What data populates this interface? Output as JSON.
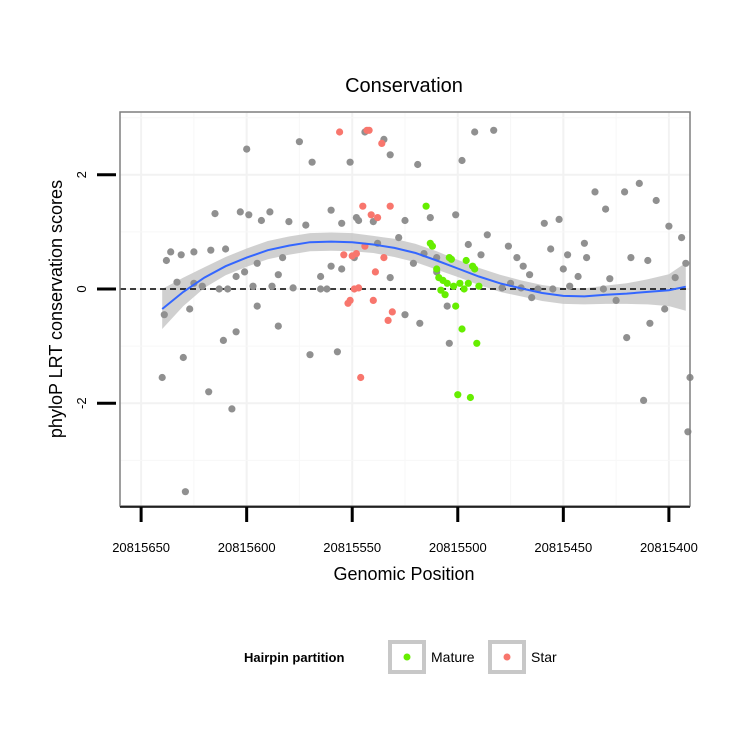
{
  "chart_data": {
    "type": "scatter",
    "title": "Conservation",
    "xlabel": "Genomic Position",
    "ylabel": "phyloP LRT conservation scores",
    "x_reversed": true,
    "xlim": [
      20815660,
      20815390
    ],
    "ylim": [
      -3.8,
      3.1
    ],
    "x_ticks": [
      20815650,
      20815600,
      20815550,
      20815500,
      20815450,
      20815400
    ],
    "x_tick_labels": [
      "20815650",
      "20815600",
      "20815550",
      "20815500",
      "20815450",
      "20815400"
    ],
    "y_ticks": [
      -2,
      0,
      2
    ],
    "y_tick_labels": [
      "-2",
      "0",
      "2"
    ],
    "grid": true,
    "reference_line": {
      "y": 0,
      "style": "dashed",
      "color": "#000000"
    },
    "smooth": {
      "color": "#3366ff",
      "band_color": "#c8c8c8",
      "x": [
        20815640,
        20815630,
        20815620,
        20815610,
        20815600,
        20815590,
        20815580,
        20815570,
        20815560,
        20815550,
        20815540,
        20815530,
        20815520,
        20815510,
        20815500,
        20815490,
        20815480,
        20815470,
        20815460,
        20815450,
        20815440,
        20815430,
        20815420,
        20815410,
        20815400,
        20815392
      ],
      "y": [
        -0.35,
        -0.05,
        0.2,
        0.4,
        0.55,
        0.68,
        0.76,
        0.82,
        0.83,
        0.82,
        0.78,
        0.72,
        0.63,
        0.5,
        0.36,
        0.22,
        0.1,
        0.01,
        -0.07,
        -0.12,
        -0.13,
        -0.1,
        -0.08,
        -0.05,
        -0.02,
        0.04
      ],
      "lower": [
        -0.7,
        -0.3,
        0.02,
        0.24,
        0.39,
        0.52,
        0.6,
        0.66,
        0.67,
        0.66,
        0.63,
        0.56,
        0.47,
        0.34,
        0.21,
        0.07,
        -0.05,
        -0.13,
        -0.21,
        -0.26,
        -0.27,
        -0.26,
        -0.26,
        -0.27,
        -0.3,
        -0.38
      ],
      "upper": [
        0.0,
        0.2,
        0.38,
        0.56,
        0.71,
        0.84,
        0.92,
        0.98,
        0.99,
        0.98,
        0.93,
        0.88,
        0.79,
        0.66,
        0.51,
        0.37,
        0.25,
        0.15,
        0.07,
        0.02,
        0.01,
        0.06,
        0.1,
        0.17,
        0.26,
        0.46
      ]
    },
    "legend": {
      "title": "Hairpin partition",
      "position": "bottom",
      "entries": [
        {
          "label": "Mature",
          "color": "#66ee00"
        },
        {
          "label": "Star",
          "color": "#f8766d"
        }
      ]
    },
    "series": [
      {
        "color": "#909090",
        "x": [
          20815640,
          20815639,
          20815638,
          20815636,
          20815633,
          20815631,
          20815629,
          20815627,
          20815625,
          20815621,
          20815618,
          20815617,
          20815615,
          20815613,
          20815611,
          20815609,
          20815607,
          20815605,
          20815603,
          20815601,
          20815599,
          20815597,
          20815595,
          20815593,
          20815589,
          20815588,
          20815585,
          20815583,
          20815580,
          20815578,
          20815575,
          20815572,
          20815569,
          20815565,
          20815562,
          20815560,
          20815557,
          20815555,
          20815551,
          20815549,
          20815547,
          20815544,
          20815538,
          20815535,
          20815532,
          20815528,
          20815525,
          20815521,
          20815519,
          20815516,
          20815513,
          20815510,
          20815504,
          20815501,
          20815498,
          20815495,
          20815492,
          20815489,
          20815486,
          20815483,
          20815479,
          20815476,
          20815472,
          20815469,
          20815466,
          20815462,
          20815459,
          20815456,
          20815452,
          20815450,
          20815447,
          20815443,
          20815439,
          20815435,
          20815431,
          20815428,
          20815425,
          20815421,
          20815418,
          20815414,
          20815412,
          20815409,
          20815406,
          20815402,
          20815397,
          20815394,
          20815392,
          20815391,
          20815390,
          20815630,
          20815625,
          20815610,
          20815605,
          20815600,
          20815595,
          20815585,
          20815570,
          20815565,
          20815560,
          20815555,
          20815548,
          20815540,
          20815532,
          20815525,
          20815518,
          20815510,
          20815505,
          20815475,
          20815470,
          20815465,
          20815455,
          20815448,
          20815440,
          20815430,
          20815420,
          20815410,
          20815400
        ],
        "y": [
          -1.55,
          -0.45,
          0.5,
          0.65,
          0.12,
          0.6,
          -3.55,
          -0.35,
          0.1,
          0.05,
          -1.8,
          0.68,
          1.32,
          0.0,
          -0.9,
          0.0,
          -2.1,
          0.22,
          1.35,
          0.3,
          1.3,
          0.05,
          0.45,
          1.2,
          1.35,
          0.05,
          0.25,
          0.55,
          1.18,
          0.02,
          2.58,
          1.12,
          2.22,
          0.22,
          0.0,
          0.4,
          -1.1,
          1.15,
          2.22,
          0.55,
          1.2,
          2.75,
          0.8,
          2.62,
          2.35,
          0.9,
          1.2,
          0.45,
          2.18,
          0.62,
          1.25,
          0.3,
          -0.95,
          1.3,
          2.25,
          0.78,
          2.75,
          0.6,
          0.95,
          2.78,
          0.02,
          0.75,
          0.55,
          0.4,
          0.25,
          0.0,
          1.15,
          0.7,
          1.22,
          0.35,
          0.05,
          0.22,
          0.55,
          1.7,
          0.0,
          0.18,
          -0.2,
          1.7,
          0.55,
          1.85,
          -1.95,
          -0.6,
          1.55,
          -0.35,
          0.2,
          0.9,
          0.45,
          -2.5,
          -1.55,
          -1.2,
          0.65,
          0.7,
          -0.75,
          2.45,
          -0.3,
          -0.65,
          -1.15,
          0.0,
          1.38,
          0.35,
          1.25,
          1.18,
          0.2,
          -0.45,
          -0.6,
          0.55,
          -0.3,
          0.1,
          0.02,
          -0.15,
          0.0,
          0.6,
          0.8,
          1.4,
          -0.85,
          0.5,
          1.1
        ]
      },
      {
        "name": "Mature",
        "color": "#66ee00",
        "x": [
          20815515,
          20815513,
          20815512,
          20815510,
          20815509,
          20815508,
          20815507,
          20815506,
          20815505,
          20815504,
          20815503,
          20815502,
          20815501,
          20815500,
          20815499,
          20815498,
          20815497,
          20815496,
          20815495,
          20815494,
          20815493,
          20815492,
          20815491,
          20815490
        ],
        "y": [
          1.45,
          0.8,
          0.75,
          0.35,
          0.2,
          -0.02,
          0.15,
          -0.1,
          0.1,
          0.55,
          0.52,
          0.05,
          -0.3,
          -1.85,
          0.1,
          -0.7,
          0.0,
          0.5,
          0.1,
          -1.9,
          0.4,
          0.35,
          -0.95,
          0.05
        ]
      },
      {
        "name": "Star",
        "color": "#f8766d",
        "x": [
          20815556,
          20815554,
          20815552,
          20815551,
          20815550,
          20815549,
          20815548,
          20815547,
          20815546,
          20815545,
          20815544,
          20815543,
          20815542,
          20815541,
          20815540,
          20815539,
          20815538,
          20815536,
          20815535,
          20815533,
          20815532,
          20815531
        ],
        "y": [
          2.75,
          0.6,
          -0.25,
          -0.2,
          0.58,
          0.0,
          0.62,
          0.02,
          -1.55,
          1.45,
          0.75,
          2.78,
          2.78,
          1.3,
          -0.2,
          0.3,
          1.25,
          2.55,
          0.55,
          -0.55,
          1.45,
          -0.4
        ]
      }
    ]
  }
}
